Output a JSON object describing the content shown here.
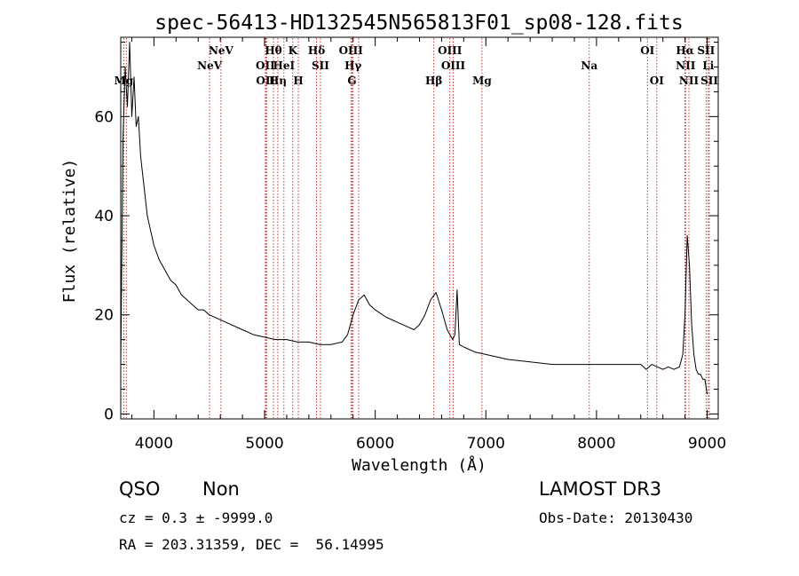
{
  "chart_data": {
    "type": "line",
    "title": "spec-56413-HD132545N565813F01_sp08-128.fits",
    "xlabel": "Wavelength (Å)",
    "ylabel": "Flux (relative)",
    "xlim": [
      3700,
      9100
    ],
    "ylim": [
      -1,
      76
    ],
    "xticks": [
      4000,
      5000,
      6000,
      7000,
      8000,
      9000
    ],
    "yticks": [
      0,
      20,
      40,
      60
    ],
    "grid": false,
    "series": [
      {
        "color": "#000000",
        "x": [
          3700,
          3720,
          3740,
          3760,
          3780,
          3800,
          3820,
          3840,
          3860,
          3880,
          3900,
          3920,
          3940,
          3960,
          3980,
          4000,
          4050,
          4100,
          4150,
          4200,
          4250,
          4300,
          4350,
          4400,
          4450,
          4500,
          4600,
          4700,
          4800,
          4900,
          5000,
          5100,
          5200,
          5300,
          5400,
          5500,
          5600,
          5700,
          5750,
          5800,
          5850,
          5900,
          5950,
          6000,
          6100,
          6200,
          6300,
          6350,
          6400,
          6450,
          6500,
          6550,
          6600,
          6650,
          6700,
          6720,
          6740,
          6760,
          6800,
          6900,
          7000,
          7200,
          7400,
          7600,
          7800,
          8000,
          8200,
          8300,
          8400,
          8450,
          8500,
          8550,
          8600,
          8650,
          8700,
          8750,
          8780,
          8800,
          8820,
          8840,
          8860,
          8880,
          8900,
          8920,
          8940,
          8960,
          8980,
          9000
        ],
        "y": [
          10,
          55,
          70,
          62,
          75,
          60,
          68,
          58,
          60,
          52,
          48,
          44,
          40,
          38,
          36,
          34,
          31,
          29,
          27,
          26,
          24,
          23,
          22,
          21,
          21,
          20,
          19,
          18,
          17,
          16,
          15.5,
          15,
          15,
          14.5,
          14.5,
          14,
          14,
          14.5,
          16,
          20,
          23,
          24,
          22,
          21,
          19.5,
          18.5,
          17.5,
          17,
          18,
          20,
          23,
          24.5,
          21,
          17,
          15,
          16,
          25,
          14,
          13.5,
          12.5,
          12,
          11,
          10.5,
          10,
          10,
          10,
          10,
          10,
          10,
          9,
          10,
          9.5,
          9,
          9.5,
          9,
          9.5,
          12,
          20,
          36,
          30,
          18,
          12,
          9,
          8,
          8,
          7,
          7,
          4
        ]
      }
    ],
    "lines": [
      {
        "x": 3727,
        "label": "Mg",
        "row": 3
      },
      {
        "x": 3750,
        "label": "",
        "row": 0
      },
      {
        "x": 4503,
        "label": "NeV",
        "row": 2
      },
      {
        "x": 4606,
        "label": "NeV",
        "row": 1
      },
      {
        "x": 5007,
        "label": "OII",
        "row": 2
      },
      {
        "x": 5010,
        "label": "OII",
        "row": 3
      },
      {
        "x": 5018,
        "label": "",
        "row": 0
      },
      {
        "x": 5080,
        "label": "Hθ",
        "row": 1
      },
      {
        "x": 5120,
        "label": "Hη",
        "row": 3
      },
      {
        "x": 5175,
        "label": "HeI",
        "row": 2
      },
      {
        "x": 5255,
        "label": "K",
        "row": 1
      },
      {
        "x": 5305,
        "label": "H",
        "row": 3
      },
      {
        "x": 5470,
        "label": "Hδ",
        "row": 1
      },
      {
        "x": 5505,
        "label": "SII",
        "row": 2
      },
      {
        "x": 5780,
        "label": "OIII",
        "row": 1
      },
      {
        "x": 5800,
        "label": "Hγ",
        "row": 2
      },
      {
        "x": 5790,
        "label": "G",
        "row": 3
      },
      {
        "x": 5850,
        "label": "",
        "row": 0
      },
      {
        "x": 6530,
        "label": "Hβ",
        "row": 3
      },
      {
        "x": 6675,
        "label": "OIII",
        "row": 1
      },
      {
        "x": 6705,
        "label": "OIII",
        "row": 2
      },
      {
        "x": 6965,
        "label": "Mg",
        "row": 3
      },
      {
        "x": 7935,
        "label": "Na",
        "row": 2
      },
      {
        "x": 8460,
        "label": "OI",
        "row": 1
      },
      {
        "x": 8545,
        "label": "OI",
        "row": 3
      },
      {
        "x": 8800,
        "label": "Hα",
        "row": 1
      },
      {
        "x": 8805,
        "label": "NII",
        "row": 2
      },
      {
        "x": 8835,
        "label": "NII",
        "row": 3
      },
      {
        "x": 8990,
        "label": "SII",
        "row": 1
      },
      {
        "x": 9010,
        "label": "Li",
        "row": 2
      },
      {
        "x": 9020,
        "label": "SII",
        "row": 3
      }
    ]
  },
  "footer": {
    "object_class": "QSO",
    "subclass": "Non",
    "survey": "LAMOST DR3",
    "cz": "cz = 0.3 ± -9999.0",
    "obs_date": "Obs-Date: 20130430",
    "coords": "RA = 203.31359, DEC =  56.14995"
  }
}
